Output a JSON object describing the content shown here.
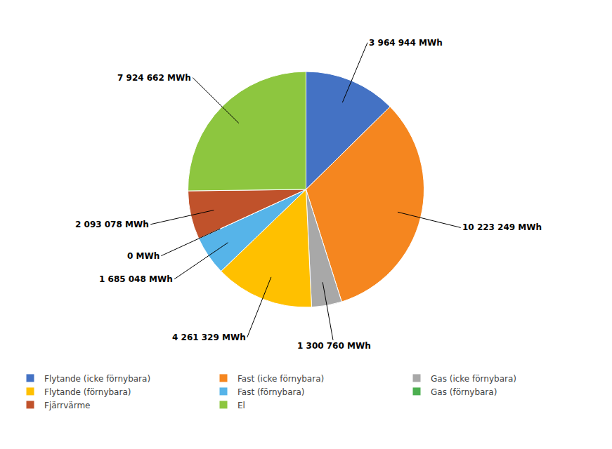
{
  "chart_data": {
    "type": "pie",
    "categories": [
      "Flytande (icke förnybara)",
      "Fast (icke förnybara)",
      "Gas (icke förnybara)",
      "Flytande (förnybara)",
      "Fast (förnybara)",
      "Gas (förnybara)",
      "Fjärrvärme",
      "El"
    ],
    "values": [
      3964944,
      10223249,
      1300760,
      4261329,
      1685048,
      0,
      2093078,
      7924662
    ],
    "colors": [
      "#4472C4",
      "#F5861F",
      "#A8A8A8",
      "#FFC000",
      "#56B4E9",
      "#4CAF50",
      "#C0522B",
      "#8DC63F"
    ],
    "data_labels": true,
    "value_labels": [
      "3 964 944 MWh",
      "10 223 249 MWh",
      "1 300 760 MWh",
      "4 261 329 MWh",
      "1 685 048 MWh",
      "0 MWh",
      "2 093 078 MWh",
      "7 924 662 MWh"
    ],
    "legend": "bottom"
  }
}
